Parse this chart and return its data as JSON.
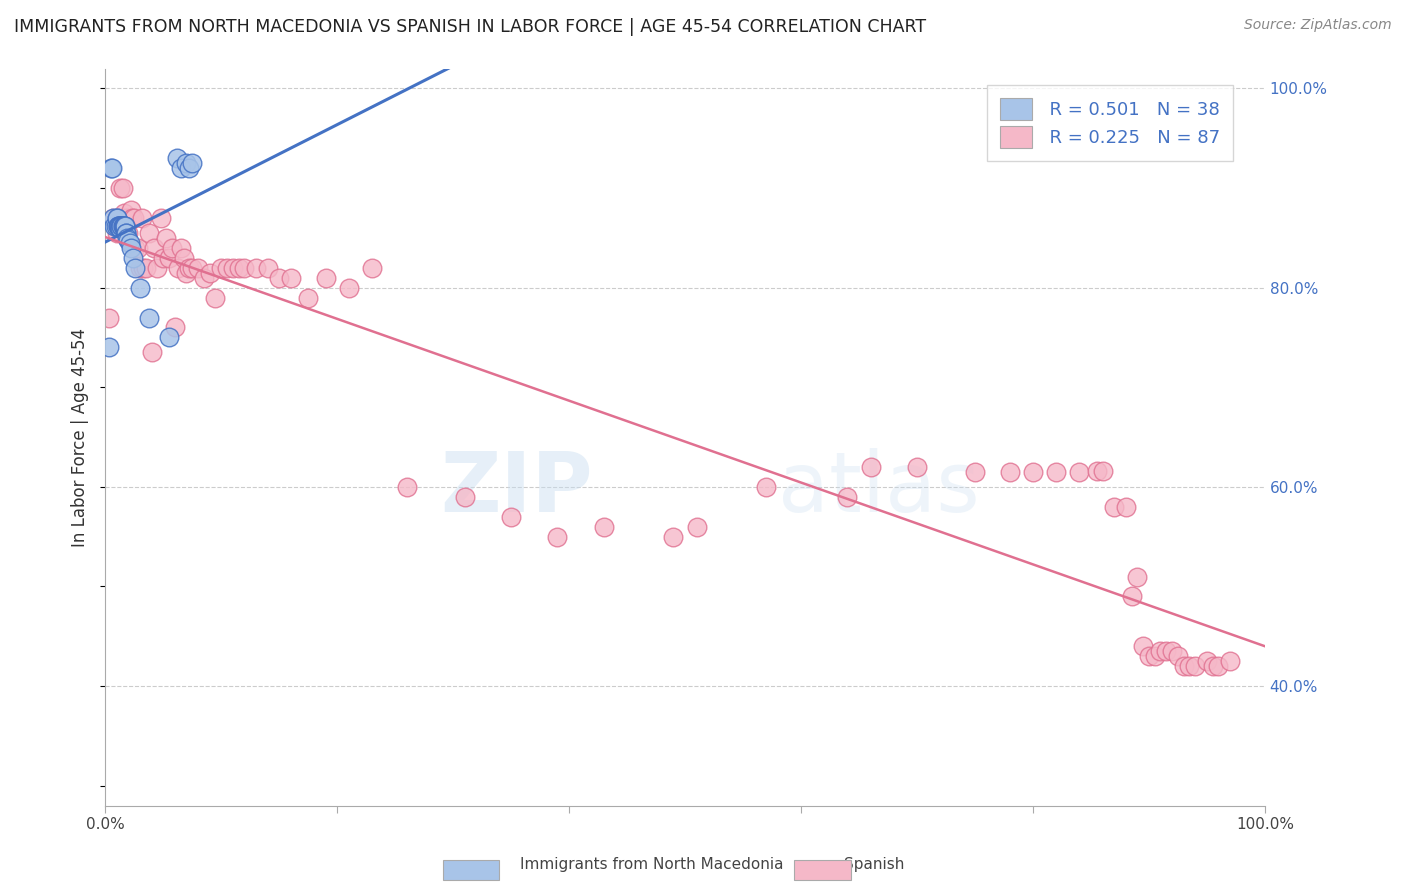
{
  "title": "IMMIGRANTS FROM NORTH MACEDONIA VS SPANISH IN LABOR FORCE | AGE 45-54 CORRELATION CHART",
  "source": "Source: ZipAtlas.com",
  "ylabel": "In Labor Force | Age 45-54",
  "xlim": [
    0.0,
    1.0
  ],
  "ylim": [
    0.28,
    1.02
  ],
  "color_blue": "#a8c4e8",
  "color_pink": "#f5b8c8",
  "line_blue": "#4472c4",
  "line_pink": "#e07090",
  "watermark_zip": "ZIP",
  "watermark_atlas": "atlas",
  "blue_x": [
    0.003,
    0.005,
    0.006,
    0.007,
    0.008,
    0.009,
    0.01,
    0.01,
    0.011,
    0.011,
    0.012,
    0.012,
    0.013,
    0.013,
    0.014,
    0.014,
    0.015,
    0.015,
    0.016,
    0.016,
    0.017,
    0.017,
    0.018,
    0.018,
    0.019,
    0.02,
    0.021,
    0.022,
    0.024,
    0.026,
    0.03,
    0.038,
    0.055,
    0.062,
    0.065,
    0.07,
    0.072,
    0.075
  ],
  "blue_y": [
    0.74,
    0.92,
    0.92,
    0.87,
    0.862,
    0.862,
    0.87,
    0.87,
    0.862,
    0.862,
    0.862,
    0.862,
    0.862,
    0.86,
    0.862,
    0.862,
    0.862,
    0.862,
    0.862,
    0.862,
    0.862,
    0.862,
    0.855,
    0.855,
    0.85,
    0.848,
    0.845,
    0.84,
    0.83,
    0.82,
    0.8,
    0.77,
    0.75,
    0.93,
    0.92,
    0.925,
    0.92,
    0.925
  ],
  "pink_x": [
    0.003,
    0.007,
    0.01,
    0.012,
    0.013,
    0.015,
    0.016,
    0.018,
    0.02,
    0.022,
    0.023,
    0.025,
    0.026,
    0.028,
    0.03,
    0.032,
    0.033,
    0.035,
    0.038,
    0.04,
    0.042,
    0.045,
    0.048,
    0.05,
    0.052,
    0.055,
    0.058,
    0.06,
    0.063,
    0.065,
    0.068,
    0.07,
    0.072,
    0.075,
    0.08,
    0.085,
    0.09,
    0.095,
    0.1,
    0.105,
    0.11,
    0.115,
    0.12,
    0.13,
    0.14,
    0.15,
    0.16,
    0.175,
    0.19,
    0.21,
    0.23,
    0.26,
    0.31,
    0.35,
    0.39,
    0.43,
    0.49,
    0.51,
    0.57,
    0.64,
    0.66,
    0.7,
    0.75,
    0.78,
    0.8,
    0.82,
    0.84,
    0.855,
    0.86,
    0.87,
    0.88,
    0.885,
    0.89,
    0.895,
    0.9,
    0.905,
    0.91,
    0.915,
    0.92,
    0.925,
    0.93,
    0.935,
    0.94,
    0.95,
    0.955,
    0.96,
    0.97
  ],
  "pink_y": [
    0.77,
    0.87,
    0.855,
    0.87,
    0.9,
    0.9,
    0.875,
    0.87,
    0.855,
    0.878,
    0.87,
    0.87,
    0.84,
    0.84,
    0.82,
    0.87,
    0.82,
    0.82,
    0.855,
    0.735,
    0.84,
    0.82,
    0.87,
    0.83,
    0.85,
    0.83,
    0.84,
    0.76,
    0.82,
    0.84,
    0.83,
    0.815,
    0.82,
    0.82,
    0.82,
    0.81,
    0.815,
    0.79,
    0.82,
    0.82,
    0.82,
    0.82,
    0.82,
    0.82,
    0.82,
    0.81,
    0.81,
    0.79,
    0.81,
    0.8,
    0.82,
    0.6,
    0.59,
    0.57,
    0.55,
    0.56,
    0.55,
    0.56,
    0.6,
    0.59,
    0.62,
    0.62,
    0.615,
    0.615,
    0.615,
    0.615,
    0.615,
    0.616,
    0.616,
    0.58,
    0.58,
    0.49,
    0.51,
    0.44,
    0.43,
    0.43,
    0.435,
    0.435,
    0.435,
    0.43,
    0.42,
    0.42,
    0.42,
    0.425,
    0.42,
    0.42,
    0.425
  ]
}
